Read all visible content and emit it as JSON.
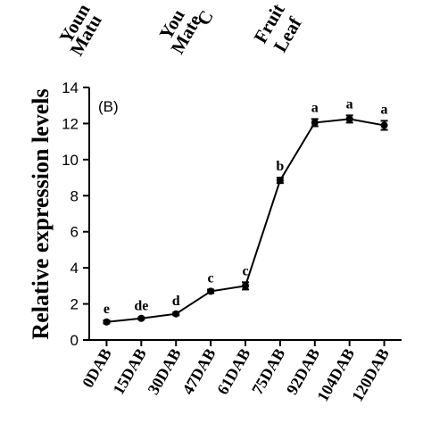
{
  "chart_data": {
    "type": "line",
    "panel_label": "(B)",
    "y_label": "Relative expression levels",
    "cropped_labels": [
      "Youn",
      "Matu",
      "You",
      "Mate",
      "C",
      "Fruit",
      "Leaf"
    ],
    "categories": [
      "0DAB",
      "15DAB",
      "30DAB",
      "47DAB",
      "61DAB",
      "75DAB",
      "92DAB",
      "104DAB",
      "120DAB"
    ],
    "series": [
      {
        "color": "#000000",
        "values": [
          1.0,
          1.2,
          1.45,
          2.7,
          3.0,
          8.85,
          12.05,
          12.25,
          11.9
        ],
        "errors": [
          0.08,
          0.06,
          0.08,
          0.1,
          0.2,
          0.15,
          0.2,
          0.2,
          0.25
        ],
        "letters": [
          "e",
          "de",
          "d",
          "c",
          "c",
          "b",
          "a",
          "a",
          "a"
        ]
      }
    ],
    "ylim": [
      0,
      14
    ],
    "yticks": [
      0,
      2,
      4,
      6,
      8,
      10,
      12,
      14
    ]
  }
}
